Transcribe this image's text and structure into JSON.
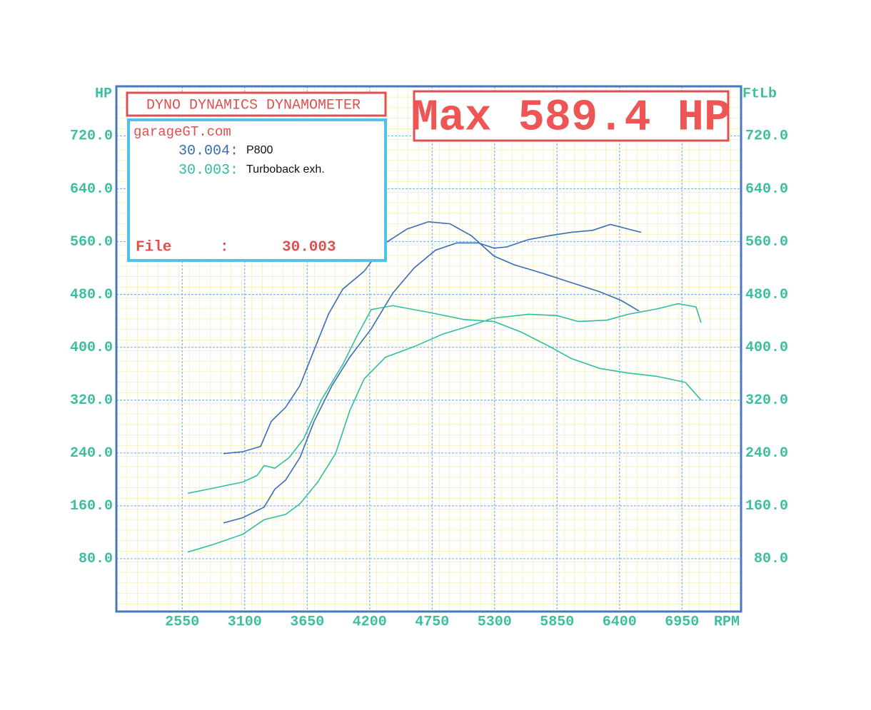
{
  "chart_data": {
    "type": "line",
    "title": "DYNO DYNAMICS DYNAMOMETER",
    "annotation": "Max 589.4 HP",
    "ylabel": "HP",
    "y2label": "FtLb",
    "xlabel": "RPM",
    "xlim": [
      1970,
      7470
    ],
    "xticks": [
      2550,
      3100,
      3650,
      4200,
      4750,
      5300,
      5850,
      6400,
      6950
    ],
    "ylim": [
      0,
      795
    ],
    "yticks": [
      {
        "value": 80,
        "label": "80.0"
      },
      {
        "value": 160,
        "label": "160.0"
      },
      {
        "value": 240,
        "label": "240.0"
      },
      {
        "value": 320,
        "label": "320.0"
      },
      {
        "value": 400,
        "label": "400.0"
      },
      {
        "value": 480,
        "label": "480.0"
      },
      {
        "value": 560,
        "label": "560.0"
      },
      {
        "value": 640,
        "label": "640.0"
      },
      {
        "value": 720,
        "label": "720.0"
      }
    ],
    "y2lim": [
      0,
      795
    ],
    "y2ticks": [
      {
        "value": 80,
        "label": "80.0"
      },
      {
        "value": 160,
        "label": "160.0"
      },
      {
        "value": 240,
        "label": "240.0"
      },
      {
        "value": 320,
        "label": "320.0"
      },
      {
        "value": 400,
        "label": "400.0"
      },
      {
        "value": 480,
        "label": "480.0"
      },
      {
        "value": 560,
        "label": "560.0"
      },
      {
        "value": 640,
        "label": "640.0"
      },
      {
        "value": 720,
        "label": "720.0"
      }
    ],
    "grid": true,
    "info_box": {
      "source": "garageGT.com",
      "file_label": "File",
      "file_sep": ":",
      "file_value": "30.003"
    },
    "series": [
      {
        "name": "P800",
        "run": "30.004:",
        "color": "#3b6db3",
        "x": [
          2913,
          3083,
          3271,
          3365,
          3460,
          3586,
          3711,
          3868,
          4025,
          4214,
          4403,
          4591,
          4780,
          4968,
          5157,
          5295,
          5408,
          5597,
          5786,
          5974,
          6163,
          6320,
          6477,
          6590
        ],
        "values": [
          134,
          142,
          158,
          185,
          199,
          233,
          288,
          342,
          385,
          428,
          482,
          520,
          547,
          558,
          558,
          550,
          552,
          563,
          569,
          574,
          577,
          586,
          579,
          574
        ]
      },
      {
        "name": "Turboback exh.",
        "run": "30.003:",
        "color": "#2fbf9f",
        "x": [
          2599,
          2831,
          3083,
          3271,
          3460,
          3586,
          3743,
          3900,
          4025,
          4151,
          4340,
          4591,
          4843,
          5094,
          5283,
          5597,
          5849,
          6037,
          6288,
          6477,
          6728,
          6917,
          7074,
          7118
        ],
        "values": [
          90,
          102,
          117,
          139,
          147,
          163,
          196,
          239,
          304,
          352,
          385,
          401,
          420,
          433,
          444,
          450,
          448,
          439,
          441,
          450,
          458,
          466,
          461,
          437
        ]
      },
      {
        "name": "P800",
        "axis": "y2",
        "color": "#3b6db3",
        "x": [
          2913,
          3083,
          3240,
          3334,
          3460,
          3586,
          3711,
          3837,
          3963,
          4151,
          4340,
          4529,
          4717,
          4906,
          5094,
          5295,
          5471,
          5723,
          5974,
          6226,
          6414,
          6571
        ],
        "values": [
          239,
          242,
          250,
          288,
          309,
          342,
          396,
          450,
          488,
          515,
          558,
          579,
          590,
          587,
          569,
          538,
          525,
          512,
          498,
          484,
          471,
          455
        ]
      },
      {
        "name": "Turboback exh.",
        "axis": "y2",
        "color": "#2fbf9f",
        "x": [
          2599,
          2831,
          3083,
          3209,
          3271,
          3365,
          3491,
          3617,
          3774,
          3963,
          4088,
          4214,
          4403,
          4717,
          5031,
          5295,
          5534,
          5786,
          5974,
          6226,
          6477,
          6728,
          6980,
          7118
        ],
        "values": [
          179,
          187,
          196,
          206,
          221,
          217,
          233,
          261,
          320,
          374,
          417,
          457,
          463,
          453,
          442,
          439,
          423,
          401,
          383,
          368,
          361,
          356,
          347,
          320
        ]
      }
    ]
  }
}
